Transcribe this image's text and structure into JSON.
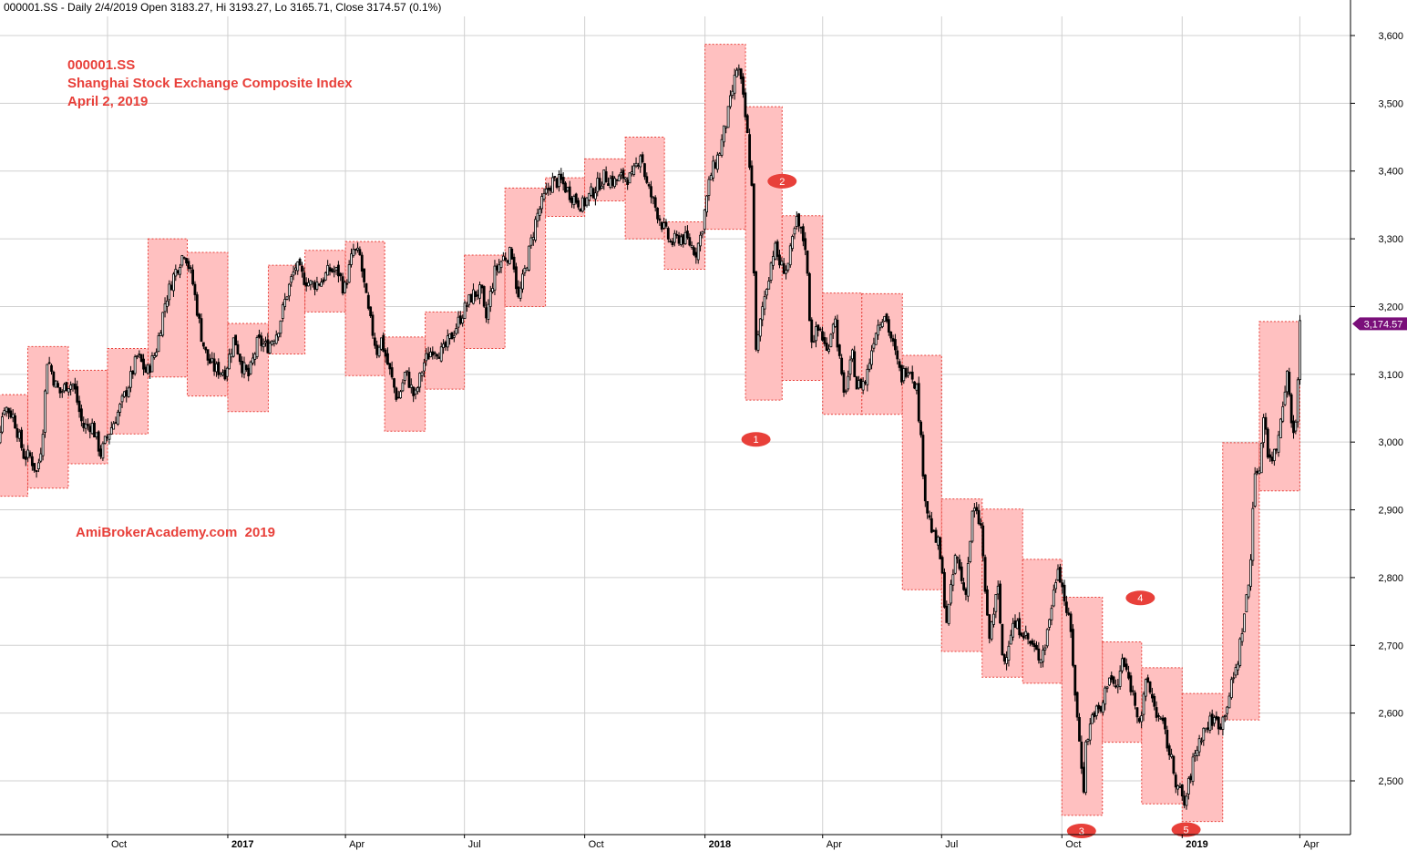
{
  "header": {
    "text": "000001.SS - Daily 2/4/2019 Open 3183.27, Hi 3193.27, Lo 3165.71, Close 3174.57 (0.1%)"
  },
  "annotation": {
    "line1": "000001.SS",
    "line2": "Shanghai Stock Exchange Composite Index",
    "line3": "April 2, 2019"
  },
  "watermark": "AmiBrokerAcademy.com  2019",
  "colors": {
    "box_fill": "#ffc0c0",
    "box_border": "#e8403a",
    "candle": "#000000",
    "grid": "#d0d0d0",
    "marker": "#e8403a",
    "last_price": "#7a0f7a"
  },
  "chart_data": {
    "type": "candlestick",
    "title": "000001.SS",
    "ylim": [
      2420,
      3625
    ],
    "y_ticks": [
      {
        "value": 2500,
        "label": "2,500"
      },
      {
        "value": 2600,
        "label": "2,600"
      },
      {
        "value": 2700,
        "label": "2,700"
      },
      {
        "value": 2800,
        "label": "2,800"
      },
      {
        "value": 2900,
        "label": "2,900"
      },
      {
        "value": 3000,
        "label": "3,000"
      },
      {
        "value": 3100,
        "label": "3,100"
      },
      {
        "value": 3200,
        "label": "3,200"
      },
      {
        "value": 3300,
        "label": "3,300"
      },
      {
        "value": 3400,
        "label": "3,400"
      },
      {
        "value": 3500,
        "label": "3,500"
      },
      {
        "value": 3600,
        "label": "3,600"
      }
    ],
    "x_range": [
      "2016-07-01",
      "2019-04-30"
    ],
    "x_ticks": [
      {
        "date": "2016-10-01",
        "label": "Oct",
        "year": false
      },
      {
        "date": "2017-01-01",
        "label": "2017",
        "year": true
      },
      {
        "date": "2017-04-01",
        "label": "Apr",
        "year": false
      },
      {
        "date": "2017-07-01",
        "label": "Jul",
        "year": false
      },
      {
        "date": "2017-10-01",
        "label": "Oct",
        "year": false
      },
      {
        "date": "2018-01-01",
        "label": "2018",
        "year": true
      },
      {
        "date": "2018-04-01",
        "label": "Apr",
        "year": false
      },
      {
        "date": "2018-07-01",
        "label": "Jul",
        "year": false
      },
      {
        "date": "2018-10-01",
        "label": "Oct",
        "year": false
      },
      {
        "date": "2019-01-01",
        "label": "2019",
        "year": true
      },
      {
        "date": "2019-04-01",
        "label": "Apr",
        "year": false
      }
    ],
    "grid": true,
    "last_price": {
      "value": 3174.57,
      "label": "3,174.57"
    },
    "monthly_boxes": [
      {
        "start": "2016-07-01",
        "end": "2016-07-31",
        "low": 2920,
        "high": 3070
      },
      {
        "start": "2016-08-01",
        "end": "2016-08-31",
        "low": 2932,
        "high": 3141
      },
      {
        "start": "2016-09-01",
        "end": "2016-09-30",
        "low": 2968,
        "high": 3106
      },
      {
        "start": "2016-10-01",
        "end": "2016-10-31",
        "low": 3012,
        "high": 3138
      },
      {
        "start": "2016-11-01",
        "end": "2016-11-30",
        "low": 3096,
        "high": 3300
      },
      {
        "start": "2016-12-01",
        "end": "2016-12-31",
        "low": 3068,
        "high": 3280
      },
      {
        "start": "2017-01-01",
        "end": "2017-01-31",
        "low": 3045,
        "high": 3175
      },
      {
        "start": "2017-02-01",
        "end": "2017-02-28",
        "low": 3130,
        "high": 3261
      },
      {
        "start": "2017-03-01",
        "end": "2017-03-31",
        "low": 3192,
        "high": 3283
      },
      {
        "start": "2017-04-01",
        "end": "2017-04-30",
        "low": 3098,
        "high": 3296
      },
      {
        "start": "2017-05-01",
        "end": "2017-05-31",
        "low": 3016,
        "high": 3155
      },
      {
        "start": "2017-06-01",
        "end": "2017-06-30",
        "low": 3078,
        "high": 3192
      },
      {
        "start": "2017-07-01",
        "end": "2017-07-31",
        "low": 3138,
        "high": 3276
      },
      {
        "start": "2017-08-01",
        "end": "2017-08-31",
        "low": 3200,
        "high": 3375
      },
      {
        "start": "2017-09-01",
        "end": "2017-09-30",
        "low": 3333,
        "high": 3390
      },
      {
        "start": "2017-10-01",
        "end": "2017-10-31",
        "low": 3356,
        "high": 3418
      },
      {
        "start": "2017-11-01",
        "end": "2017-11-30",
        "low": 3300,
        "high": 3450
      },
      {
        "start": "2017-12-01",
        "end": "2017-12-31",
        "low": 3255,
        "high": 3325
      },
      {
        "start": "2018-01-01",
        "end": "2018-01-31",
        "low": 3314,
        "high": 3587
      },
      {
        "start": "2018-02-01",
        "end": "2018-02-28",
        "low": 3062,
        "high": 3495
      },
      {
        "start": "2018-03-01",
        "end": "2018-03-31",
        "low": 3091,
        "high": 3334
      },
      {
        "start": "2018-04-01",
        "end": "2018-04-30",
        "low": 3041,
        "high": 3220
      },
      {
        "start": "2018-05-01",
        "end": "2018-05-31",
        "low": 3041,
        "high": 3219
      },
      {
        "start": "2018-06-01",
        "end": "2018-06-30",
        "low": 2782,
        "high": 3128
      },
      {
        "start": "2018-07-01",
        "end": "2018-07-31",
        "low": 2691,
        "high": 2916
      },
      {
        "start": "2018-08-01",
        "end": "2018-08-31",
        "low": 2653,
        "high": 2901
      },
      {
        "start": "2018-09-01",
        "end": "2018-09-30",
        "low": 2644,
        "high": 2827
      },
      {
        "start": "2018-10-01",
        "end": "2018-10-31",
        "low": 2449,
        "high": 2771
      },
      {
        "start": "2018-11-01",
        "end": "2018-11-30",
        "low": 2557,
        "high": 2705
      },
      {
        "start": "2018-12-01",
        "end": "2018-12-31",
        "low": 2466,
        "high": 2667
      },
      {
        "start": "2019-01-01",
        "end": "2019-01-31",
        "low": 2440,
        "high": 2629
      },
      {
        "start": "2019-02-01",
        "end": "2019-02-28",
        "low": 2590,
        "high": 2999
      },
      {
        "start": "2019-03-01",
        "end": "2019-03-31",
        "low": 2928,
        "high": 3178
      }
    ],
    "close_path": [
      [
        "2016-07-01",
        2988
      ],
      [
        "2016-07-08",
        2995
      ],
      [
        "2016-07-14",
        3054
      ],
      [
        "2016-07-21",
        3038
      ],
      [
        "2016-07-29",
        2980
      ],
      [
        "2016-08-03",
        2978
      ],
      [
        "2016-08-08",
        2954
      ],
      [
        "2016-08-12",
        3004
      ],
      [
        "2016-08-16",
        3126
      ],
      [
        "2016-08-22",
        3085
      ],
      [
        "2016-08-26",
        3072
      ],
      [
        "2016-08-31",
        3086
      ],
      [
        "2016-09-05",
        3085
      ],
      [
        "2016-09-12",
        3022
      ],
      [
        "2016-09-19",
        3026
      ],
      [
        "2016-09-26",
        2982
      ],
      [
        "2016-09-30",
        3005
      ],
      [
        "2016-10-10",
        3048
      ],
      [
        "2016-10-17",
        3084
      ],
      [
        "2016-10-24",
        3128
      ],
      [
        "2016-10-31",
        3101
      ],
      [
        "2016-11-07",
        3134
      ],
      [
        "2016-11-14",
        3206
      ],
      [
        "2016-11-21",
        3248
      ],
      [
        "2016-11-29",
        3283
      ],
      [
        "2016-12-05",
        3237
      ],
      [
        "2016-12-12",
        3155
      ],
      [
        "2016-12-16",
        3124
      ],
      [
        "2016-12-22",
        3108
      ],
      [
        "2016-12-30",
        3104
      ],
      [
        "2017-01-06",
        3155
      ],
      [
        "2017-01-12",
        3112
      ],
      [
        "2017-01-17",
        3097
      ],
      [
        "2017-01-24",
        3149
      ],
      [
        "2017-01-31",
        3140
      ],
      [
        "2017-02-08",
        3164
      ],
      [
        "2017-02-15",
        3218
      ],
      [
        "2017-02-22",
        3260
      ],
      [
        "2017-02-28",
        3242
      ],
      [
        "2017-03-06",
        3232
      ],
      [
        "2017-03-13",
        3237
      ],
      [
        "2017-03-20",
        3254
      ],
      [
        "2017-03-27",
        3250
      ],
      [
        "2017-03-31",
        3223
      ],
      [
        "2017-04-07",
        3283
      ],
      [
        "2017-04-12",
        3274
      ],
      [
        "2017-04-18",
        3196
      ],
      [
        "2017-04-25",
        3134
      ],
      [
        "2017-04-28",
        3154
      ],
      [
        "2017-05-05",
        3103
      ],
      [
        "2017-05-11",
        3061
      ],
      [
        "2017-05-17",
        3104
      ],
      [
        "2017-05-24",
        3064
      ],
      [
        "2017-05-31",
        3117
      ],
      [
        "2017-06-07",
        3140
      ],
      [
        "2017-06-14",
        3131
      ],
      [
        "2017-06-21",
        3156
      ],
      [
        "2017-06-30",
        3192
      ],
      [
        "2017-07-07",
        3217
      ],
      [
        "2017-07-14",
        3223
      ],
      [
        "2017-07-17",
        3176
      ],
      [
        "2017-07-24",
        3250
      ],
      [
        "2017-07-31",
        3273
      ],
      [
        "2017-08-07",
        3279
      ],
      [
        "2017-08-11",
        3208
      ],
      [
        "2017-08-18",
        3268
      ],
      [
        "2017-08-25",
        3331
      ],
      [
        "2017-08-31",
        3361
      ],
      [
        "2017-09-06",
        3385
      ],
      [
        "2017-09-13",
        3384
      ],
      [
        "2017-09-20",
        3366
      ],
      [
        "2017-09-29",
        3349
      ],
      [
        "2017-10-09",
        3374
      ],
      [
        "2017-10-16",
        3392
      ],
      [
        "2017-10-24",
        3384
      ],
      [
        "2017-10-31",
        3393
      ],
      [
        "2017-11-06",
        3388
      ],
      [
        "2017-11-13",
        3430
      ],
      [
        "2017-11-17",
        3382
      ],
      [
        "2017-11-23",
        3352
      ],
      [
        "2017-11-30",
        3317
      ],
      [
        "2017-12-06",
        3293
      ],
      [
        "2017-12-13",
        3303
      ],
      [
        "2017-12-19",
        3297
      ],
      [
        "2017-12-25",
        3280
      ],
      [
        "2017-12-29",
        3307
      ],
      [
        "2018-01-05",
        3392
      ],
      [
        "2018-01-12",
        3428
      ],
      [
        "2018-01-19",
        3487
      ],
      [
        "2018-01-26",
        3558
      ],
      [
        "2018-01-29",
        3523
      ],
      [
        "2018-02-02",
        3462
      ],
      [
        "2018-02-06",
        3370
      ],
      [
        "2018-02-09",
        3129
      ],
      [
        "2018-02-14",
        3199
      ],
      [
        "2018-02-23",
        3289
      ],
      [
        "2018-02-28",
        3259
      ],
      [
        "2018-03-05",
        3256
      ],
      [
        "2018-03-12",
        3326
      ],
      [
        "2018-03-19",
        3290
      ],
      [
        "2018-03-23",
        3152
      ],
      [
        "2018-03-30",
        3168
      ],
      [
        "2018-04-04",
        3131
      ],
      [
        "2018-04-10",
        3190
      ],
      [
        "2018-04-17",
        3066
      ],
      [
        "2018-04-24",
        3128
      ],
      [
        "2018-04-27",
        3082
      ],
      [
        "2018-05-04",
        3091
      ],
      [
        "2018-05-11",
        3163
      ],
      [
        "2018-05-18",
        3193
      ],
      [
        "2018-05-25",
        3141
      ],
      [
        "2018-05-31",
        3095
      ],
      [
        "2018-06-06",
        3115
      ],
      [
        "2018-06-12",
        3079
      ],
      [
        "2018-06-19",
        2907
      ],
      [
        "2018-06-25",
        2859
      ],
      [
        "2018-06-29",
        2847
      ],
      [
        "2018-07-05",
        2733
      ],
      [
        "2018-07-12",
        2837
      ],
      [
        "2018-07-19",
        2772
      ],
      [
        "2018-07-25",
        2903
      ],
      [
        "2018-07-31",
        2876
      ],
      [
        "2018-08-06",
        2705
      ],
      [
        "2018-08-13",
        2785
      ],
      [
        "2018-08-17",
        2669
      ],
      [
        "2018-08-24",
        2729
      ],
      [
        "2018-08-31",
        2725
      ],
      [
        "2018-09-07",
        2702
      ],
      [
        "2018-09-14",
        2682
      ],
      [
        "2018-09-18",
        2700
      ],
      [
        "2018-09-25",
        2781
      ],
      [
        "2018-09-28",
        2821
      ],
      [
        "2018-10-08",
        2716
      ],
      [
        "2018-10-12",
        2606
      ],
      [
        "2018-10-18",
        2486
      ],
      [
        "2018-10-19",
        2550
      ],
      [
        "2018-10-25",
        2603
      ],
      [
        "2018-10-31",
        2602
      ],
      [
        "2018-11-06",
        2659
      ],
      [
        "2018-11-12",
        2630
      ],
      [
        "2018-11-16",
        2679
      ],
      [
        "2018-11-22",
        2645
      ],
      [
        "2018-11-30",
        2588
      ],
      [
        "2018-12-05",
        2650
      ],
      [
        "2018-12-12",
        2602
      ],
      [
        "2018-12-18",
        2576
      ],
      [
        "2018-12-24",
        2527
      ],
      [
        "2018-12-28",
        2494
      ],
      [
        "2019-01-03",
        2464
      ],
      [
        "2019-01-10",
        2535
      ],
      [
        "2019-01-16",
        2570
      ],
      [
        "2019-01-24",
        2591
      ],
      [
        "2019-01-31",
        2584
      ],
      [
        "2019-02-12",
        2671
      ],
      [
        "2019-02-18",
        2754
      ],
      [
        "2019-02-22",
        2804
      ],
      [
        "2019-02-25",
        2961
      ],
      [
        "2019-02-28",
        2941
      ],
      [
        "2019-03-05",
        3054
      ],
      [
        "2019-03-08",
        2969
      ],
      [
        "2019-03-14",
        2990
      ],
      [
        "2019-03-22",
        3104
      ],
      [
        "2019-03-28",
        2994
      ],
      [
        "2019-04-01",
        3170
      ],
      [
        "2019-04-02",
        3177
      ]
    ],
    "markers": [
      {
        "label": "1",
        "date": "2018-02-09",
        "value": 3004
      },
      {
        "label": "2",
        "date": "2018-03-01",
        "value": 3385
      },
      {
        "label": "3",
        "date": "2018-10-16",
        "value": 2426
      },
      {
        "label": "4",
        "date": "2018-11-30",
        "value": 2770
      },
      {
        "label": "5",
        "date": "2019-01-04",
        "value": 2428
      }
    ]
  }
}
